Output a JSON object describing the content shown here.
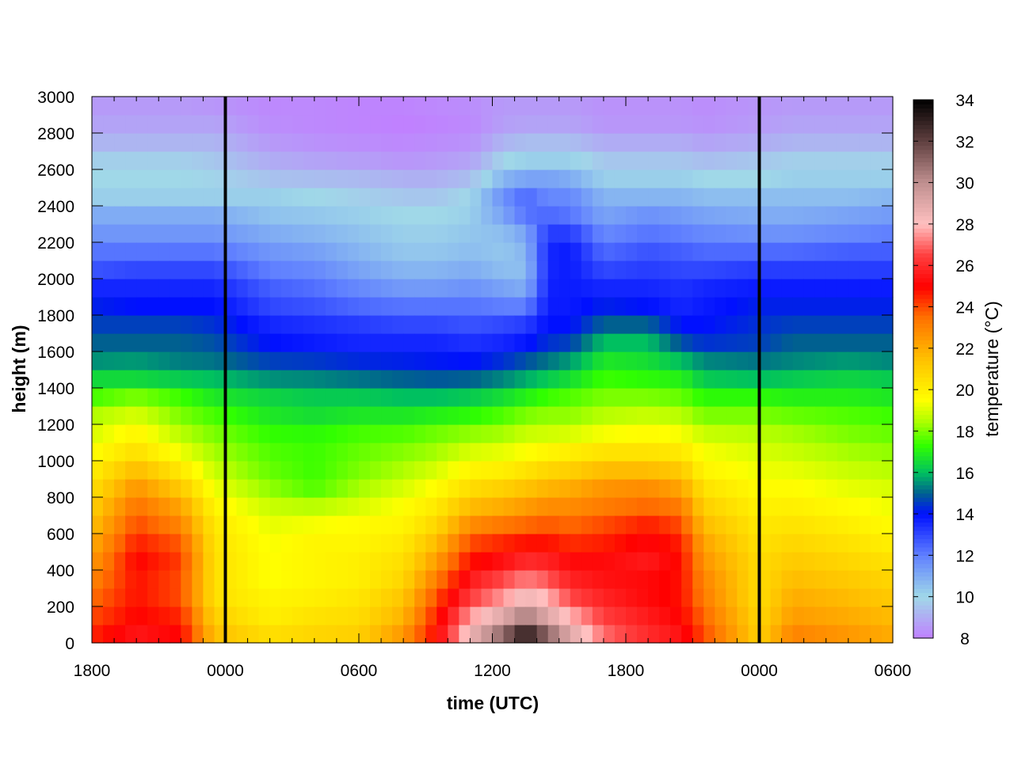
{
  "chart_data": {
    "type": "heatmap",
    "title": "",
    "xlabel": "time (UTC)",
    "ylabel": "height (m)",
    "colorbar_label": "temperature (°C)",
    "x_unit": "hours since start (tick labels are UTC clock times)",
    "xlim": [
      0,
      36
    ],
    "ylim": [
      0,
      3000
    ],
    "zlim": [
      8,
      34
    ],
    "x_ticks": [
      {
        "value": 0,
        "label": "1800"
      },
      {
        "value": 6,
        "label": "0000"
      },
      {
        "value": 12,
        "label": "0600"
      },
      {
        "value": 18,
        "label": "1200"
      },
      {
        "value": 24,
        "label": "1800"
      },
      {
        "value": 30,
        "label": "0000"
      },
      {
        "value": 36,
        "label": "0600"
      }
    ],
    "y_ticks": [
      0,
      200,
      400,
      600,
      800,
      1000,
      1200,
      1400,
      1600,
      1800,
      2000,
      2200,
      2400,
      2600,
      2800,
      3000
    ],
    "z_ticks": [
      8,
      10,
      12,
      14,
      16,
      18,
      20,
      22,
      24,
      26,
      28,
      30,
      32,
      34
    ],
    "vertical_lines_at": [
      6,
      30
    ],
    "grid": false,
    "legend": "colorbar-right",
    "colormap": [
      {
        "v": 8,
        "c": "#c080ff"
      },
      {
        "v": 10,
        "c": "#a0d8e8"
      },
      {
        "v": 12,
        "c": "#6080ff"
      },
      {
        "v": 14,
        "c": "#0010ff"
      },
      {
        "v": 15,
        "c": "#006090"
      },
      {
        "v": 16,
        "c": "#00c060"
      },
      {
        "v": 17.3,
        "c": "#30ff00"
      },
      {
        "v": 18.5,
        "c": "#b0ff00"
      },
      {
        "v": 19.5,
        "c": "#ffff00"
      },
      {
        "v": 21.5,
        "c": "#ffc000"
      },
      {
        "v": 23.5,
        "c": "#ff7000"
      },
      {
        "v": 25,
        "c": "#ff0000"
      },
      {
        "v": 26.5,
        "c": "#ff4040"
      },
      {
        "v": 28,
        "c": "#ffc0c0"
      },
      {
        "v": 30,
        "c": "#c09090"
      },
      {
        "v": 32,
        "c": "#604040"
      },
      {
        "v": 34,
        "c": "#000000"
      }
    ],
    "heights": [
      0,
      100,
      200,
      300,
      400,
      500,
      600,
      700,
      800,
      900,
      1000,
      1100,
      1200,
      1300,
      1400,
      1500,
      1600,
      1700,
      1800,
      1900,
      2000,
      2100,
      2200,
      2300,
      2400,
      2500,
      2600,
      2700,
      2800,
      2900
    ],
    "profiles": [
      {
        "t": 0,
        "temps": [
          24.5,
          24.0,
          23.5,
          23.0,
          22.5,
          22.0,
          21.5,
          21.0,
          20.5,
          20.0,
          19.5,
          19.0,
          18.5,
          17.5,
          16.5,
          15.5,
          15.0,
          14.6,
          14.2,
          13.6,
          12.8,
          12.2,
          11.5,
          11.0,
          10.2,
          10.0,
          9.8,
          9.2,
          8.8,
          8.6
        ]
      },
      {
        "t": 2,
        "temps": [
          25.5,
          25.0,
          24.8,
          24.8,
          25.0,
          24.6,
          24.0,
          23.4,
          22.6,
          21.6,
          20.5,
          19.8,
          19.0,
          18.0,
          16.5,
          15.6,
          15.0,
          14.6,
          14.0,
          13.6,
          13.0,
          12.2,
          11.5,
          11.0,
          10.2,
          10.0,
          9.8,
          9.2,
          8.8,
          8.6
        ]
      },
      {
        "t": 4,
        "temps": [
          25.0,
          24.5,
          24.0,
          24.0,
          24.2,
          23.8,
          23.0,
          22.2,
          21.2,
          20.2,
          19.3,
          18.6,
          18.0,
          17.4,
          16.2,
          15.3,
          15.0,
          14.6,
          14.0,
          13.6,
          13.0,
          12.2,
          11.5,
          11.0,
          10.2,
          10.0,
          9.8,
          9.2,
          8.8,
          8.6
        ]
      },
      {
        "t": 5.5,
        "temps": [
          21.5,
          21.0,
          20.5,
          20.5,
          20.5,
          20.4,
          20.2,
          19.8,
          19.3,
          18.8,
          18.4,
          18.0,
          17.5,
          16.8,
          16.0,
          15.2,
          14.8,
          14.4,
          14.0,
          13.6,
          13.0,
          12.2,
          11.5,
          11.0,
          10.2,
          9.9,
          9.6,
          9.2,
          8.8,
          8.5
        ]
      },
      {
        "t": 8,
        "temps": [
          20.5,
          20.0,
          19.8,
          19.5,
          19.5,
          19.4,
          19.2,
          18.8,
          18.2,
          17.8,
          17.6,
          17.3,
          16.8,
          16.4,
          15.5,
          14.6,
          14.0,
          13.6,
          13.0,
          12.6,
          12.0,
          11.5,
          11.0,
          10.5,
          10.2,
          9.5,
          9.0,
          8.6,
          8.3,
          8.2
        ]
      },
      {
        "t": 10,
        "temps": [
          20.8,
          20.4,
          20.0,
          19.8,
          19.8,
          19.8,
          19.4,
          18.6,
          17.6,
          17.4,
          17.4,
          17.2,
          16.6,
          16.2,
          15.4,
          14.5,
          13.8,
          13.4,
          12.8,
          12.3,
          11.8,
          11.3,
          10.8,
          10.4,
          10.0,
          9.4,
          8.8,
          8.4,
          8.2,
          8.2
        ]
      },
      {
        "t": 12,
        "temps": [
          21.0,
          20.6,
          20.3,
          20.0,
          20.0,
          19.8,
          19.6,
          19.0,
          18.4,
          18.0,
          17.8,
          17.5,
          16.8,
          16.2,
          15.2,
          14.3,
          13.6,
          13.2,
          12.4,
          11.8,
          11.2,
          10.8,
          10.5,
          10.2,
          9.8,
          9.3,
          8.7,
          8.3,
          8.1,
          8.1
        ]
      },
      {
        "t": 14,
        "temps": [
          22.5,
          21.8,
          21.3,
          20.8,
          20.5,
          20.2,
          19.8,
          19.5,
          19.0,
          18.5,
          18.1,
          17.6,
          16.8,
          16.0,
          15.0,
          14.2,
          13.6,
          13.0,
          12.2,
          11.4,
          10.8,
          10.4,
          10.2,
          10.0,
          9.6,
          9.1,
          8.5,
          8.2,
          8.0,
          8.1
        ]
      },
      {
        "t": 15.5,
        "temps": [
          25.0,
          24.6,
          24.0,
          23.2,
          22.4,
          21.6,
          20.8,
          20.2,
          19.6,
          19.0,
          18.4,
          17.9,
          17.0,
          16.0,
          14.9,
          14.1,
          13.6,
          13.0,
          12.2,
          11.4,
          10.8,
          10.4,
          10.2,
          10.0,
          9.6,
          9.1,
          8.6,
          8.3,
          8.1,
          8.2
        ]
      },
      {
        "t": 17,
        "temps": [
          28.5,
          27.5,
          26.4,
          25.6,
          24.8,
          24.0,
          22.8,
          21.6,
          20.6,
          19.8,
          19.0,
          18.2,
          17.2,
          16.2,
          15.0,
          14.0,
          13.4,
          12.8,
          12.2,
          11.6,
          11.0,
          10.6,
          10.4,
          10.2,
          10.0,
          9.4,
          8.8,
          8.4,
          8.2,
          8.3
        ]
      },
      {
        "t": 18.5,
        "temps": [
          31.0,
          29.0,
          27.5,
          26.6,
          25.4,
          24.5,
          23.3,
          22.0,
          21.0,
          20.0,
          19.2,
          18.4,
          17.6,
          16.6,
          15.4,
          14.4,
          13.6,
          13.0,
          12.0,
          11.2,
          10.6,
          10.4,
          10.6,
          11.2,
          11.6,
          10.8,
          9.9,
          9.2,
          8.7,
          8.6
        ]
      },
      {
        "t": 19.5,
        "temps": [
          33.0,
          30.5,
          28.5,
          27.2,
          26.0,
          24.8,
          23.6,
          22.4,
          21.4,
          20.4,
          19.5,
          18.8,
          18.0,
          17.0,
          15.8,
          14.8,
          13.9,
          13.2,
          12.0,
          11.0,
          10.6,
          10.8,
          11.2,
          12.2,
          12.4,
          11.2,
          10.2,
          9.4,
          8.8,
          8.6
        ]
      },
      {
        "t": 20.5,
        "temps": [
          31.0,
          29.0,
          27.8,
          26.8,
          25.8,
          24.8,
          23.8,
          22.8,
          21.8,
          20.8,
          19.8,
          18.9,
          18.2,
          17.4,
          16.2,
          15.2,
          14.4,
          14.0,
          13.8,
          13.7,
          13.6,
          13.6,
          13.2,
          12.4,
          11.8,
          11.2,
          10.2,
          9.4,
          8.8,
          8.6
        ]
      },
      {
        "t": 21.5,
        "temps": [
          29.0,
          27.8,
          26.6,
          25.8,
          25.2,
          24.4,
          23.6,
          22.8,
          22.0,
          21.0,
          20.0,
          19.0,
          18.2,
          17.6,
          16.6,
          15.6,
          14.6,
          14.0,
          13.8,
          13.8,
          13.8,
          13.8,
          13.2,
          12.2,
          11.8,
          11.0,
          10.2,
          9.4,
          8.8,
          8.6
        ]
      },
      {
        "t": 23,
        "temps": [
          27.0,
          26.4,
          25.8,
          25.4,
          25.2,
          24.6,
          24.0,
          23.2,
          22.6,
          21.6,
          20.4,
          19.4,
          18.6,
          18.0,
          17.4,
          16.8,
          16.0,
          15.0,
          14.2,
          13.6,
          13.0,
          12.4,
          11.8,
          11.2,
          10.8,
          10.2,
          9.6,
          9.0,
          8.5,
          8.4
        ]
      },
      {
        "t": 25,
        "temps": [
          26.0,
          25.6,
          25.2,
          25.2,
          25.6,
          25.2,
          24.6,
          23.6,
          22.8,
          21.6,
          20.4,
          19.6,
          18.8,
          18.0,
          17.2,
          16.6,
          16.0,
          15.0,
          14.0,
          13.6,
          13.2,
          12.8,
          12.2,
          11.6,
          10.8,
          10.2,
          9.6,
          9.0,
          8.5,
          8.4
        ]
      },
      {
        "t": 26.5,
        "temps": [
          25.4,
          25.0,
          24.8,
          24.8,
          24.8,
          24.6,
          24.0,
          23.2,
          22.2,
          21.2,
          20.2,
          19.4,
          18.6,
          17.8,
          17.0,
          16.0,
          14.8,
          14.0,
          13.6,
          13.4,
          13.0,
          12.6,
          12.0,
          11.4,
          10.8,
          10.2,
          9.6,
          9.0,
          8.5,
          8.4
        ]
      },
      {
        "t": 27.5,
        "temps": [
          24.0,
          23.6,
          23.2,
          23.0,
          22.6,
          22.2,
          21.6,
          21.0,
          20.4,
          19.8,
          19.4,
          18.8,
          18.0,
          17.2,
          16.2,
          15.4,
          14.4,
          14.0,
          13.8,
          13.6,
          13.0,
          12.4,
          11.8,
          11.2,
          10.6,
          10.0,
          9.4,
          8.8,
          8.4,
          8.3
        ]
      },
      {
        "t": 30,
        "temps": [
          21.0,
          20.8,
          20.6,
          20.6,
          20.6,
          20.4,
          20.2,
          19.9,
          19.6,
          19.3,
          19.0,
          18.6,
          18.0,
          17.2,
          16.0,
          15.2,
          14.6,
          14.4,
          14.2,
          13.8,
          13.2,
          12.4,
          11.6,
          11.0,
          10.6,
          10.0,
          9.6,
          9.0,
          8.6,
          8.5
        ]
      },
      {
        "t": 31.5,
        "temps": [
          23.0,
          22.4,
          22.0,
          21.6,
          21.2,
          20.8,
          20.4,
          20.0,
          19.6,
          19.2,
          18.8,
          18.4,
          17.8,
          17.0,
          16.2,
          15.4,
          15.0,
          14.6,
          14.2,
          13.8,
          13.2,
          12.4,
          11.6,
          11.0,
          10.6,
          10.2,
          9.8,
          9.2,
          8.8,
          8.6
        ]
      },
      {
        "t": 34,
        "temps": [
          22.5,
          22.0,
          21.6,
          21.2,
          20.8,
          20.4,
          20.0,
          19.6,
          19.2,
          18.8,
          18.4,
          18.0,
          17.6,
          17.0,
          16.4,
          15.6,
          15.0,
          14.6,
          14.2,
          13.8,
          13.2,
          12.6,
          11.8,
          11.2,
          10.6,
          10.2,
          9.8,
          9.2,
          8.8,
          8.6
        ]
      },
      {
        "t": 36,
        "temps": [
          22.0,
          21.6,
          21.2,
          20.8,
          20.4,
          20.0,
          19.6,
          19.3,
          19.0,
          18.6,
          18.2,
          17.8,
          17.4,
          16.8,
          16.2,
          15.4,
          15.0,
          14.6,
          14.2,
          13.8,
          13.2,
          12.6,
          12.0,
          11.4,
          10.8,
          10.2,
          9.8,
          9.2,
          8.8,
          8.6
        ]
      }
    ]
  }
}
